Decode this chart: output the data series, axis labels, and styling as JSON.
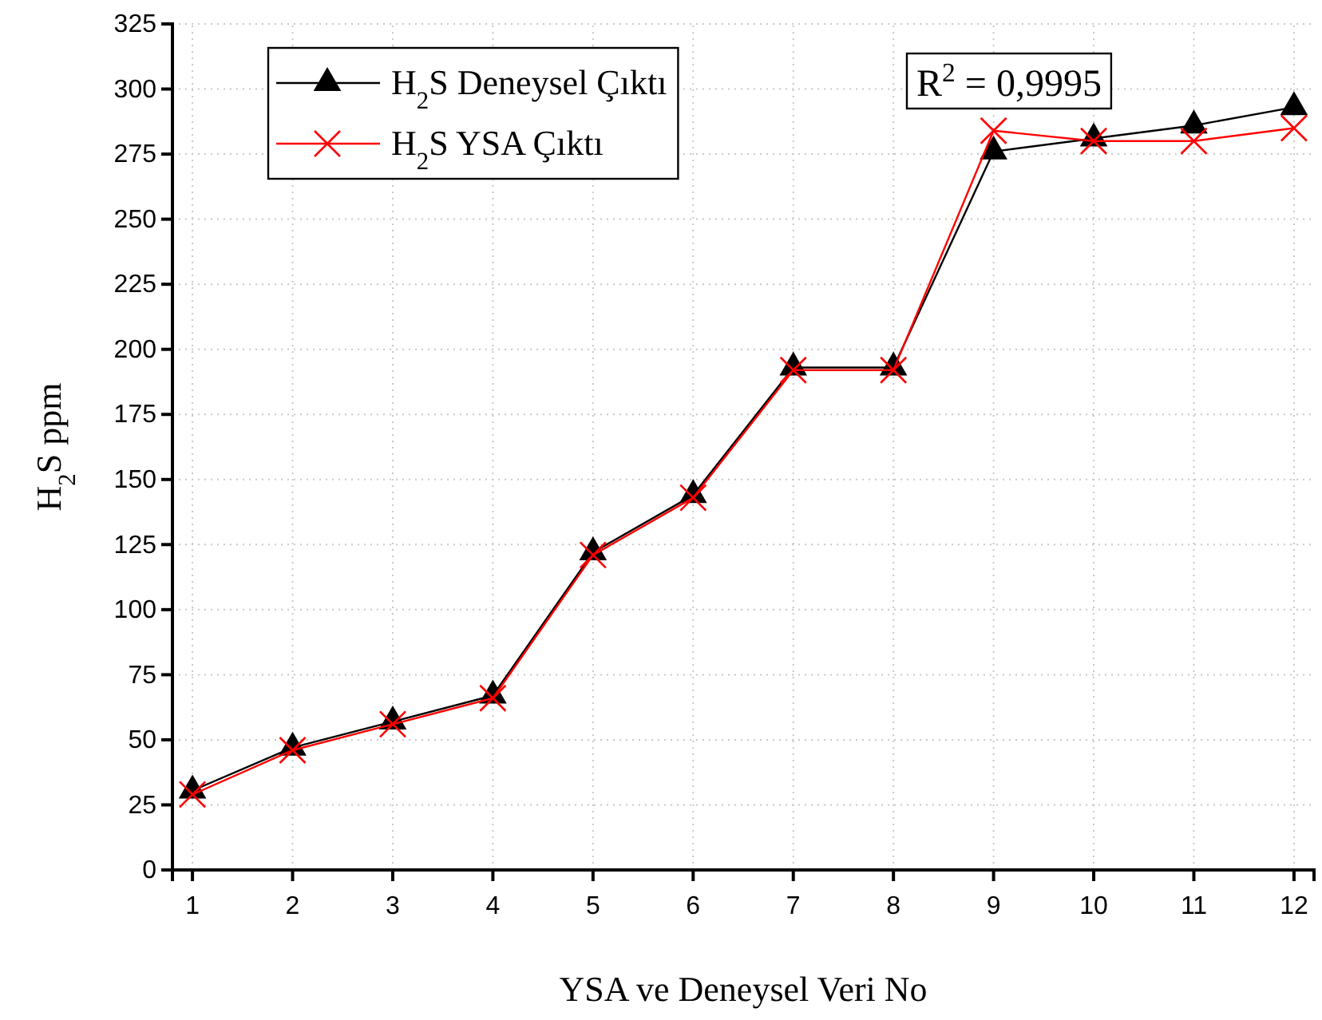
{
  "chart_data": {
    "type": "line",
    "xlabel": "YSA ve Deneysel Veri No",
    "ylabel": "H$_{2}$S ppm",
    "x": [
      1,
      2,
      3,
      4,
      5,
      6,
      7,
      8,
      9,
      10,
      11,
      12
    ],
    "series": [
      {
        "name": "H$_{2}$S Deneysel Çıktı",
        "color": "#000000",
        "marker": "triangle",
        "values": [
          30.5,
          47,
          57,
          67,
          122,
          144,
          193,
          193,
          276,
          281,
          286,
          293
        ]
      },
      {
        "name": "H$_{2}$S YSA Çıktı",
        "color": "#ff0000",
        "marker": "cross",
        "values": [
          29,
          46,
          56,
          66,
          121,
          143,
          192,
          192,
          284,
          280,
          280,
          285
        ]
      }
    ],
    "xlim": [
      0.8,
      12.2
    ],
    "xticks": [
      1,
      2,
      3,
      4,
      5,
      6,
      7,
      8,
      9,
      10,
      11,
      12
    ],
    "ylim": [
      0,
      325
    ],
    "yticks": [
      0,
      25,
      50,
      75,
      100,
      125,
      150,
      175,
      200,
      225,
      250,
      275,
      300,
      325
    ],
    "grid": true,
    "legend": "top left",
    "line_style": "solid",
    "annotations": [
      "R$^{2}$ = 0,9995"
    ]
  }
}
